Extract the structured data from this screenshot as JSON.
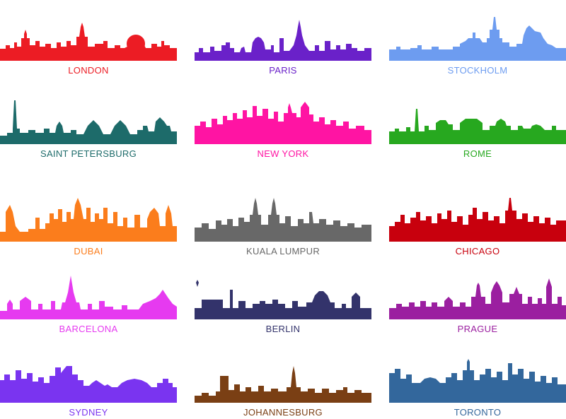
{
  "cities": [
    {
      "id": "london",
      "name": "LONDON",
      "color": "#ec1c24"
    },
    {
      "id": "paris",
      "name": "PARIS",
      "color": "#6a21c9"
    },
    {
      "id": "stockholm",
      "name": "STOCKHOLM",
      "color": "#6d9cf0"
    },
    {
      "id": "saint-petersburg",
      "name": "SAINT PETERSBURG",
      "color": "#1d6b6a"
    },
    {
      "id": "new-york",
      "name": "NEW YORK",
      "color": "#ff14a3"
    },
    {
      "id": "rome",
      "name": "ROME",
      "color": "#27a81f"
    },
    {
      "id": "dubai",
      "name": "DUBAI",
      "color": "#fb7d1c"
    },
    {
      "id": "kuala-lumpur",
      "name": "KUALA LUMPUR",
      "color": "#686868"
    },
    {
      "id": "chicago",
      "name": "CHICAGO",
      "color": "#c8000d"
    },
    {
      "id": "barcelona",
      "name": "BARCELONA",
      "color": "#e63af0"
    },
    {
      "id": "berlin",
      "name": "BERLIN",
      "color": "#33336b"
    },
    {
      "id": "prague",
      "name": "PRAGUE",
      "color": "#9b1fa0"
    },
    {
      "id": "sydney",
      "name": "SYDNEY",
      "color": "#7a34f0"
    },
    {
      "id": "johannesburg",
      "name": "JOHANNESBURG",
      "color": "#7a3f14"
    },
    {
      "id": "toronto",
      "name": "TORONTO",
      "color": "#33679c"
    }
  ]
}
